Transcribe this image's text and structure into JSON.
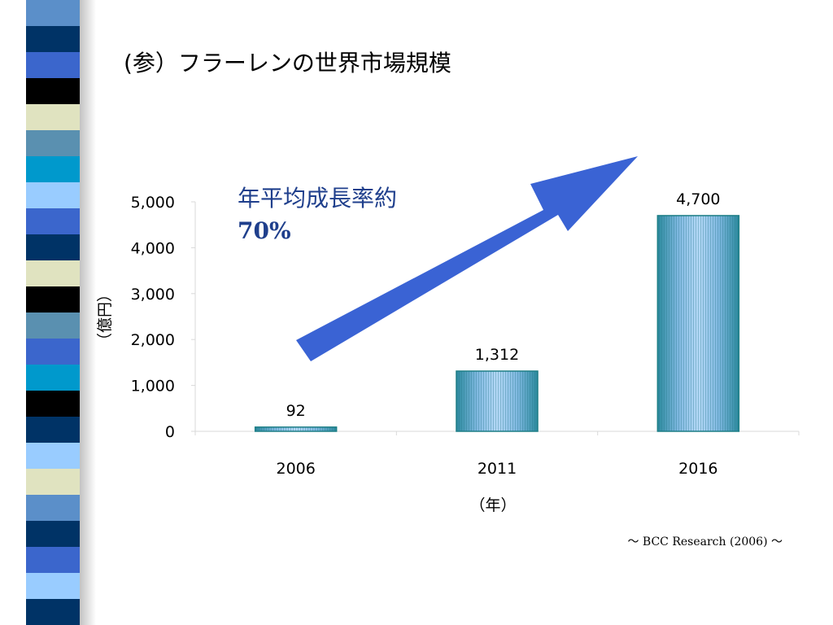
{
  "slide": {
    "title": "(参）フラーレンの世界市場規模",
    "callout_line1": "年平均成長率約",
    "callout_line2": "70%",
    "source": "～ BCC Research (2006) ～"
  },
  "colors": {
    "bar_fill_light": "#a9d0f5",
    "bar_fill_dark": "#2b8a9e",
    "bar_border": "#1d7f86",
    "arrow": "#3a63d4",
    "callout_text": "#1f3f8c",
    "stripes": [
      "#5b8fc9",
      "#003366",
      "#3b66cc",
      "#000000",
      "#e0e3c0",
      "#5a90b0",
      "#0099cc",
      "#99ccff",
      "#3b66cc",
      "#003366",
      "#e0e3c0",
      "#000000",
      "#5a90b0",
      "#3b66cc",
      "#0099cc",
      "#000000",
      "#003366",
      "#99ccff",
      "#e0e3c0",
      "#5b8fc9",
      "#003366",
      "#3b66cc",
      "#99ccff",
      "#003366"
    ]
  },
  "chart_data": {
    "type": "bar",
    "categories": [
      "2006",
      "2011",
      "2016"
    ],
    "values": [
      92,
      1312,
      4700
    ],
    "data_labels": [
      "92",
      "1,312",
      "4,700"
    ],
    "ylim": [
      0,
      5000
    ],
    "y_ticks": [
      "0",
      "1,000",
      "2,000",
      "3,000",
      "4,000",
      "5,000"
    ],
    "ylabel": "（億円）",
    "xlabel": "（年）",
    "grid": false,
    "legend": "none"
  }
}
